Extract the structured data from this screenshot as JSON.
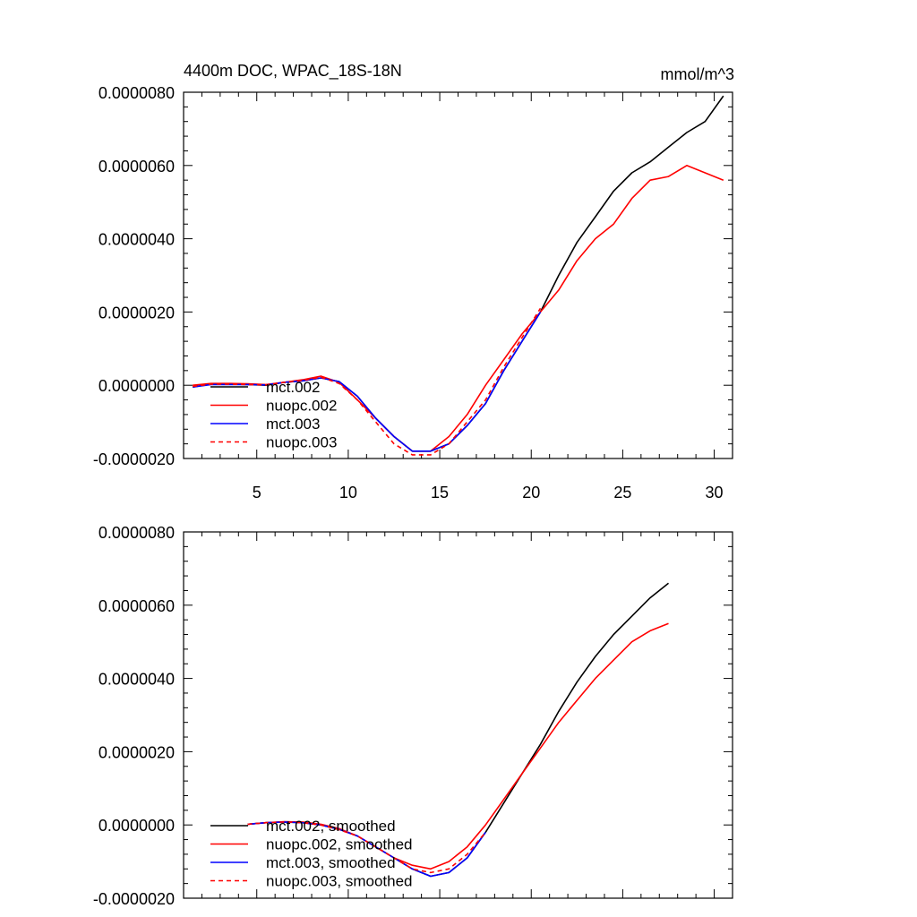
{
  "chart_data": [
    {
      "type": "line",
      "title": "4400m DOC, WPAC_18S-18N",
      "units": "mmol/m^3",
      "xlim": [
        1,
        31
      ],
      "ylim": [
        -2e-06,
        8e-06
      ],
      "x_ticks": [
        5,
        10,
        15,
        20,
        25,
        30
      ],
      "x_tick_labels": [
        "5",
        "10",
        "15",
        "20",
        "25",
        "30"
      ],
      "y_ticks": [
        -2e-06,
        0,
        2e-06,
        4e-06,
        6e-06,
        8e-06
      ],
      "y_tick_labels": [
        "-0.0000020",
        "0.0000000",
        "0.0000020",
        "0.0000040",
        "0.0000060",
        "0.0000080"
      ],
      "legend_position": "bottom-left",
      "series": [
        {
          "name": "mct.002",
          "color": "#000000",
          "dash": "solid",
          "x": [
            1.5,
            2.5,
            3.5,
            4.5,
            5.5,
            6.5,
            7.5,
            8.5,
            9.5,
            10.5,
            11.5,
            12.5,
            13.5,
            14.5,
            15.5,
            16.5,
            17.5,
            18.5,
            19.5,
            20.5,
            21.5,
            22.5,
            23.5,
            24.5,
            25.5,
            26.5,
            27.5,
            28.5,
            29.5,
            30.5
          ],
          "y": [
            -5e-08,
            3e-08,
            3e-08,
            2e-08,
            0.0,
            8e-08,
            1.2e-07,
            2e-07,
            1e-07,
            -3e-07,
            -9e-07,
            -1.4e-06,
            -1.8e-06,
            -1.8e-06,
            -1.6e-06,
            -1.1e-06,
            -5e-07,
            4e-07,
            1.2e-06,
            2e-06,
            3e-06,
            3.9e-06,
            4.6e-06,
            5.3e-06,
            5.8e-06,
            6.1e-06,
            6.5e-06,
            6.9e-06,
            7.2e-06,
            7.9e-06
          ]
        },
        {
          "name": "nuopc.002",
          "color": "#ff0000",
          "dash": "solid",
          "x": [
            1.5,
            2.5,
            3.5,
            4.5,
            5.5,
            6.5,
            7.5,
            8.5,
            9.5,
            10.5,
            11.5,
            12.5,
            13.5,
            14.5,
            15.5,
            16.5,
            17.5,
            18.5,
            19.5,
            20.5,
            21.5,
            22.5,
            23.5,
            24.5,
            25.5,
            26.5,
            27.5,
            28.5,
            29.5,
            30.5
          ],
          "y": [
            0.0,
            5e-08,
            5e-08,
            4e-08,
            2e-08,
            8e-08,
            1.5e-07,
            2.5e-07,
            8e-08,
            -4e-07,
            -9e-07,
            -1.4e-06,
            -1.8e-06,
            -1.8e-06,
            -1.4e-06,
            -8e-07,
            0.0,
            7e-07,
            1.4e-06,
            2e-06,
            2.6e-06,
            3.4e-06,
            4e-06,
            4.4e-06,
            5.1e-06,
            5.6e-06,
            5.7e-06,
            6e-06,
            5.8e-06,
            5.6e-06
          ]
        },
        {
          "name": "mct.003",
          "color": "#0000ff",
          "dash": "solid",
          "x": [
            1.5,
            2.5,
            3.5,
            4.5,
            5.5,
            6.5,
            7.5,
            8.5,
            9.5,
            10.5,
            11.5,
            12.5,
            13.5,
            14.5,
            15.5,
            16.5,
            17.5,
            18.5,
            19.5,
            20.5
          ],
          "y": [
            -5e-08,
            2e-08,
            2e-08,
            2e-08,
            1e-08,
            8e-08,
            1.2e-07,
            2e-07,
            1e-07,
            -3e-07,
            -9e-07,
            -1.4e-06,
            -1.8e-06,
            -1.8e-06,
            -1.6e-06,
            -1.1e-06,
            -5e-07,
            4e-07,
            1.2e-06,
            2e-06
          ]
        },
        {
          "name": "nuopc.003",
          "color": "#ff0000",
          "dash": "dashed",
          "x": [
            1.5,
            2.5,
            3.5,
            4.5,
            5.5,
            6.5,
            7.5,
            8.5,
            9.5,
            10.5,
            11.5,
            12.5,
            13.5,
            14.5,
            15.5,
            16.5,
            17.5,
            18.5,
            19.5,
            20.5
          ],
          "y": [
            -3e-08,
            3e-08,
            3e-08,
            2e-08,
            1e-08,
            8e-08,
            1.3e-07,
            2.2e-07,
            5e-08,
            -4e-07,
            -1e-06,
            -1.6e-06,
            -1.9e-06,
            -1.9e-06,
            -1.6e-06,
            -1e-06,
            -4e-07,
            5e-07,
            1.3e-06,
            2.1e-06
          ]
        }
      ]
    },
    {
      "type": "line",
      "title": "",
      "xlim": [
        1,
        31
      ],
      "ylim": [
        -2e-06,
        8e-06
      ],
      "x_ticks": [
        5,
        10,
        15,
        20,
        25,
        30
      ],
      "y_ticks": [
        -2e-06,
        0,
        2e-06,
        4e-06,
        6e-06,
        8e-06
      ],
      "y_tick_labels": [
        "-0.0000020",
        "0.0000000",
        "0.0000020",
        "0.0000040",
        "0.0000060",
        "0.0000080"
      ],
      "legend_position": "bottom-left",
      "series": [
        {
          "name": "mct.002, smoothed",
          "color": "#000000",
          "dash": "solid",
          "x": [
            4.5,
            5.5,
            6.5,
            7.5,
            8.5,
            9.5,
            10.5,
            11.5,
            12.5,
            13.5,
            14.5,
            15.5,
            16.5,
            17.5,
            18.5,
            19.5,
            20.5,
            21.5,
            22.5,
            23.5,
            24.5,
            25.5,
            26.5,
            27.5
          ],
          "y": [
            2e-08,
            6e-08,
            8e-08,
            6e-08,
            0.0,
            -1.2e-07,
            -3e-07,
            -6e-07,
            -9e-07,
            -1.2e-06,
            -1.4e-06,
            -1.3e-06,
            -9e-07,
            -2e-07,
            6e-07,
            1.4e-06,
            2.2e-06,
            3.1e-06,
            3.9e-06,
            4.6e-06,
            5.2e-06,
            5.7e-06,
            6.2e-06,
            6.6e-06
          ]
        },
        {
          "name": "nuopc.002, smoothed",
          "color": "#ff0000",
          "dash": "solid",
          "x": [
            4.5,
            5.5,
            6.5,
            7.5,
            8.5,
            9.5,
            10.5,
            11.5,
            12.5,
            13.5,
            14.5,
            15.5,
            16.5,
            17.5,
            18.5,
            19.5,
            20.5,
            21.5,
            22.5,
            23.5,
            24.5,
            25.5,
            26.5,
            27.5
          ],
          "y": [
            2e-08,
            6e-08,
            9e-08,
            8e-08,
            2e-08,
            -1e-07,
            -3e-07,
            -6e-07,
            -9e-07,
            -1.1e-06,
            -1.2e-06,
            -1e-06,
            -6e-07,
            0.0,
            7e-07,
            1.4e-06,
            2.1e-06,
            2.8e-06,
            3.4e-06,
            4e-06,
            4.5e-06,
            5e-06,
            5.3e-06,
            5.5e-06
          ]
        },
        {
          "name": "mct.003, smoothed",
          "color": "#0000ff",
          "dash": "solid",
          "x": [
            4.5,
            5.5,
            6.5,
            7.5,
            8.5,
            9.5,
            10.5,
            11.5,
            12.5,
            13.5,
            14.5,
            15.5,
            16.5,
            17.5
          ],
          "y": [
            2e-08,
            6e-08,
            8e-08,
            6e-08,
            0.0,
            -1.2e-07,
            -3e-07,
            -6e-07,
            -9e-07,
            -1.2e-06,
            -1.4e-06,
            -1.3e-06,
            -9e-07,
            -2e-07
          ]
        },
        {
          "name": "nuopc.003, smoothed",
          "color": "#ff0000",
          "dash": "dashed",
          "x": [
            4.5,
            5.5,
            6.5,
            7.5,
            8.5,
            9.5,
            10.5,
            11.5,
            12.5,
            13.5,
            14.5,
            15.5,
            16.5,
            17.5
          ],
          "y": [
            2e-08,
            6e-08,
            8e-08,
            6e-08,
            0.0,
            -1.3e-07,
            -3e-07,
            -6e-07,
            -9e-07,
            -1.2e-06,
            -1.3e-06,
            -1.2e-06,
            -8e-07,
            -2e-07
          ]
        }
      ]
    }
  ]
}
